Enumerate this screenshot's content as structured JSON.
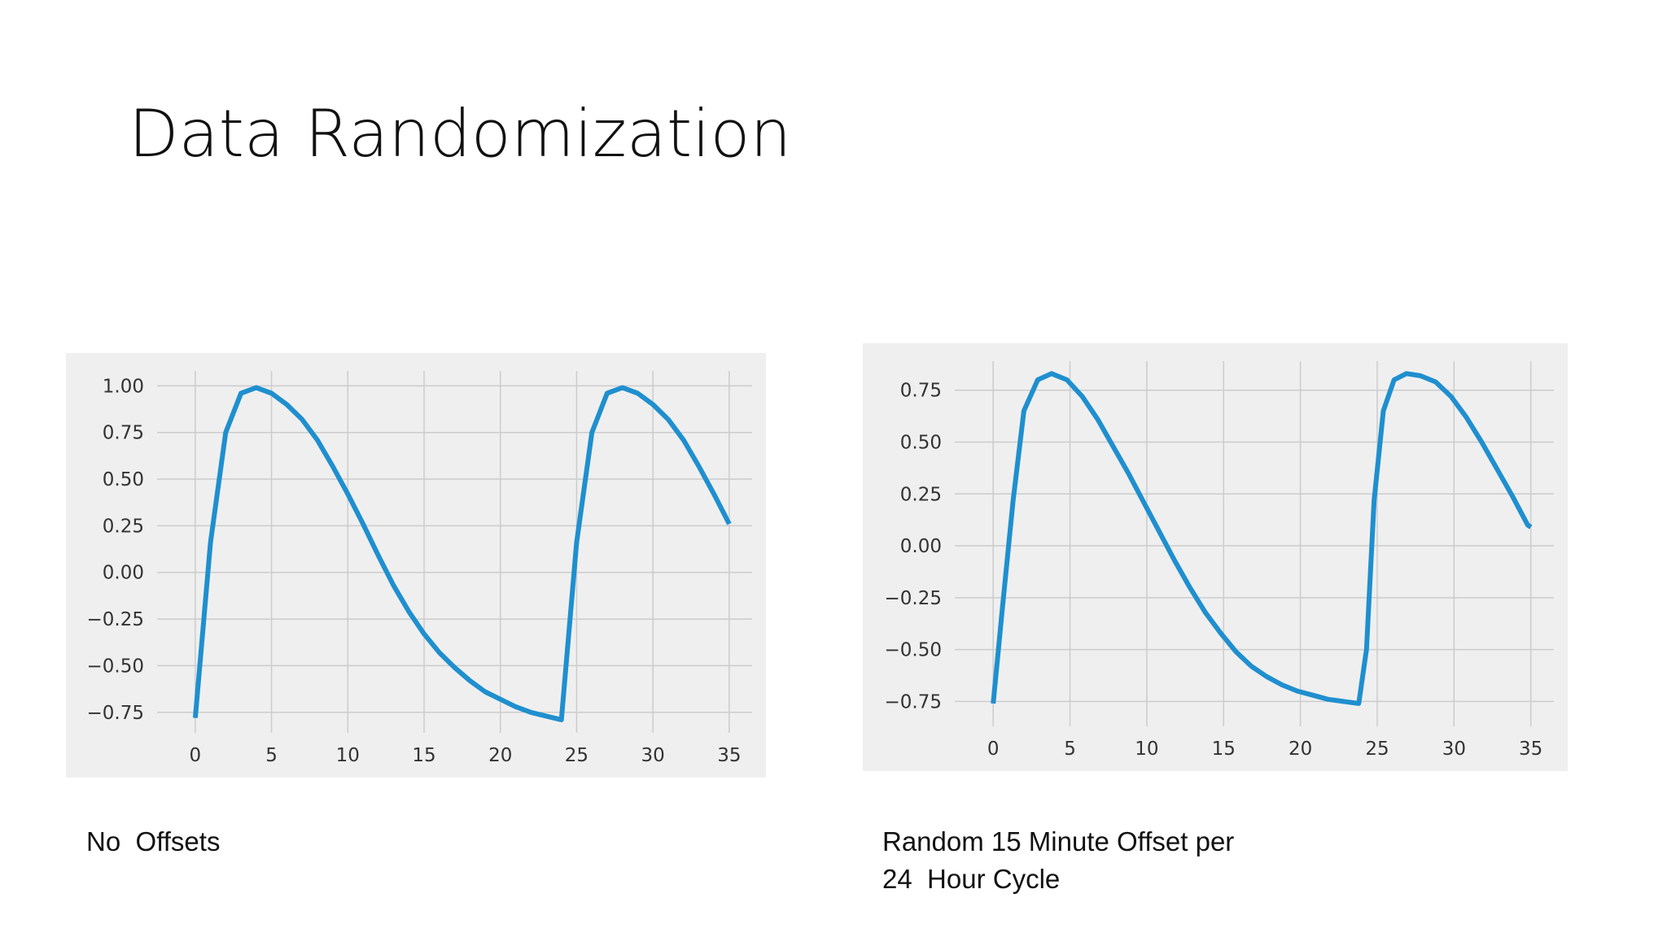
{
  "slide": {
    "title": "Data Randomization",
    "caption_left": "No  Offsets",
    "caption_right_line1": "Random 15 Minute Offset per",
    "caption_right_line2": "24  Hour Cycle"
  },
  "colors": {
    "line": "#1f8fcf",
    "panel_background": "#efefef",
    "grid": "#cccccc"
  },
  "chart_data": [
    {
      "type": "line",
      "title": "",
      "xlabel": "",
      "ylabel": "",
      "grid": true,
      "xlim": [
        -2.5,
        36.5
      ],
      "ylim": [
        -0.86,
        1.08
      ],
      "xticks": [
        "0",
        "5",
        "10",
        "15",
        "20",
        "25",
        "30",
        "35"
      ],
      "xtick_values": [
        0,
        5,
        10,
        15,
        20,
        25,
        30,
        35
      ],
      "yticks": [
        "1.00",
        "0.75",
        "0.50",
        "0.25",
        "0.00",
        "−0.25",
        "−0.50",
        "−0.75"
      ],
      "ytick_values": [
        1.0,
        0.75,
        0.5,
        0.25,
        0.0,
        -0.25,
        -0.5,
        -0.75
      ],
      "series": [
        {
          "x": [
            0,
            1,
            2,
            3,
            4,
            5,
            6,
            7,
            8,
            9,
            10,
            11,
            12,
            13,
            14,
            15,
            16,
            17,
            18,
            19,
            20,
            21,
            22,
            23,
            24,
            25,
            26,
            27,
            28,
            29,
            30,
            31,
            32,
            33,
            34,
            35
          ],
          "values": [
            -0.78,
            0.16,
            0.75,
            0.96,
            0.99,
            0.96,
            0.9,
            0.82,
            0.71,
            0.57,
            0.42,
            0.26,
            0.09,
            -0.07,
            -0.21,
            -0.33,
            -0.43,
            -0.51,
            -0.58,
            -0.64,
            -0.68,
            -0.72,
            -0.75,
            -0.77,
            -0.79,
            0.16,
            0.75,
            0.96,
            0.99,
            0.96,
            0.9,
            0.82,
            0.71,
            0.57,
            0.42,
            0.26
          ]
        }
      ]
    },
    {
      "type": "line",
      "title": "",
      "xlabel": "",
      "ylabel": "",
      "grid": true,
      "xlim": [
        -2.5,
        36.5
      ],
      "ylim": [
        -0.87,
        0.89
      ],
      "xticks": [
        "0",
        "5",
        "10",
        "15",
        "20",
        "25",
        "30",
        "35"
      ],
      "xtick_values": [
        0,
        5,
        10,
        15,
        20,
        25,
        30,
        35
      ],
      "yticks": [
        "0.75",
        "0.50",
        "0.25",
        "0.00",
        "−0.25",
        "−0.50",
        "−0.75"
      ],
      "ytick_values": [
        0.75,
        0.5,
        0.25,
        0.0,
        -0.25,
        -0.5,
        -0.75
      ],
      "series": [
        {
          "x": [
            0,
            0.6,
            1.3,
            2,
            2.9,
            3.8,
            4.8,
            5.8,
            6.8,
            7.8,
            8.8,
            9.8,
            10.8,
            11.8,
            12.8,
            13.8,
            14.8,
            15.8,
            16.8,
            17.8,
            18.8,
            19.8,
            20.8,
            21.8,
            22.8,
            23.8,
            24.3,
            24.8,
            25.4,
            26.1,
            26.9,
            27.8,
            28.8,
            29.8,
            30.8,
            31.8,
            32.8,
            33.8,
            34.8,
            35
          ],
          "values": [
            -0.76,
            -0.3,
            0.22,
            0.65,
            0.8,
            0.83,
            0.8,
            0.72,
            0.61,
            0.48,
            0.35,
            0.21,
            0.07,
            -0.07,
            -0.2,
            -0.32,
            -0.42,
            -0.51,
            -0.58,
            -0.63,
            -0.67,
            -0.7,
            -0.72,
            -0.74,
            -0.75,
            -0.76,
            -0.5,
            0.22,
            0.65,
            0.8,
            0.83,
            0.82,
            0.79,
            0.72,
            0.62,
            0.5,
            0.37,
            0.24,
            0.1,
            0.09
          ]
        }
      ]
    }
  ]
}
